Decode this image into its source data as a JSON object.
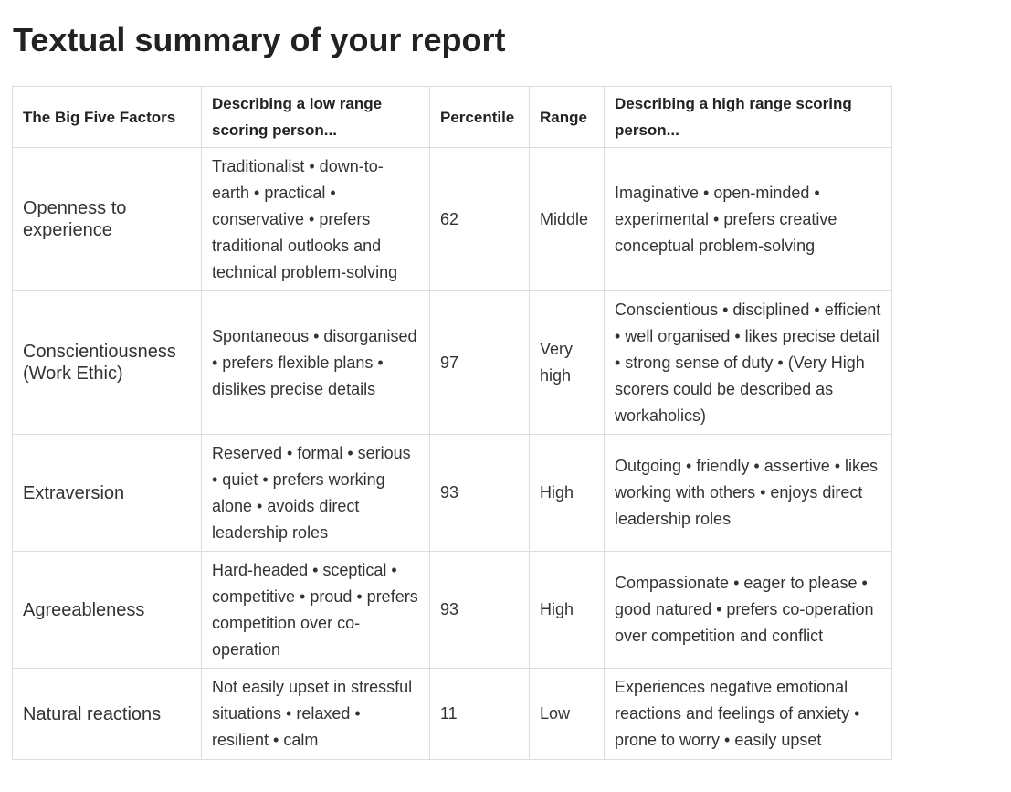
{
  "page": {
    "title": "Textual summary of your report"
  },
  "table": {
    "headers": {
      "factor": "The Big Five Factors",
      "low": "Describing a low range scoring person...",
      "percentile": "Percentile",
      "range": "Range",
      "high": "Describing a high range scoring person..."
    },
    "rows": [
      {
        "factor": "Openness to experience",
        "low": "Traditionalist • down-to-earth • practical • conservative • prefers traditional outlooks and technical problem-solving",
        "percentile": "62",
        "range": "Middle",
        "high": "Imaginative • open-minded • experimental • prefers creative conceptual problem-solving"
      },
      {
        "factor": "Conscientiousness (Work Ethic)",
        "low": "Spontaneous • disorganised • prefers flexible plans • dislikes precise details",
        "percentile": "97",
        "range": "Very high",
        "high": "Conscientious • disciplined • efficient • well organised • likes precise detail • strong sense of duty • (Very High scorers could be described as workaholics)"
      },
      {
        "factor": "Extraversion",
        "low": "Reserved • formal • serious • quiet • prefers working alone • avoids direct leadership roles",
        "percentile": "93",
        "range": "High",
        "high": "Outgoing • friendly • assertive • likes working with others • enjoys direct leadership roles"
      },
      {
        "factor": "Agreeableness",
        "low": "Hard-headed • sceptical • competitive • proud • prefers competition over co-operation",
        "percentile": "93",
        "range": "High",
        "high": "Compassionate • eager to please • good natured • prefers co-operation over competition and conflict"
      },
      {
        "factor": "Natural reactions",
        "low": "Not easily upset in stressful situations • relaxed • resilient • calm",
        "percentile": "11",
        "range": "Low",
        "high": "Experiences negative emotional reactions and feelings of anxiety • prone to worry • easily upset"
      }
    ]
  }
}
